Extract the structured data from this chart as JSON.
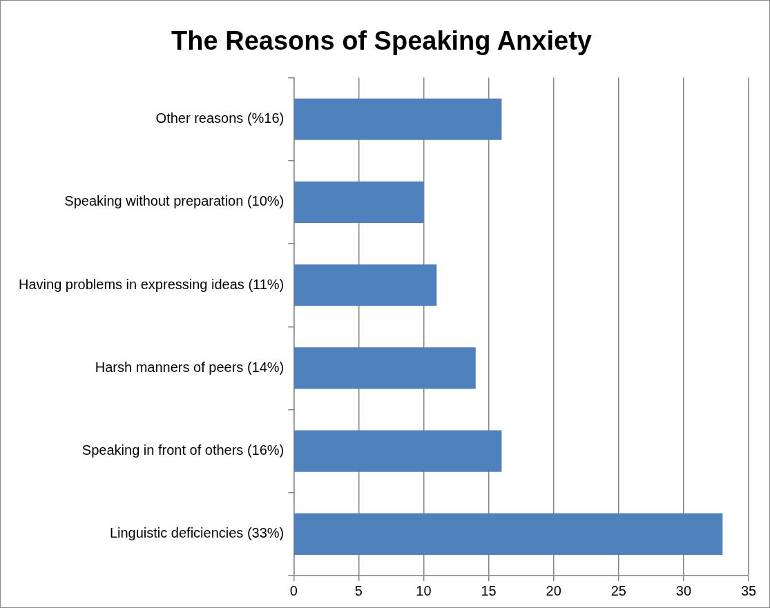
{
  "chart_data": {
    "type": "bar",
    "orientation": "horizontal",
    "title": "The Reasons of Speaking Anxiety",
    "categories": [
      "Other reasons (%16)",
      "Speaking without preparation (10%)",
      "Having problems in expressing ideas (11%)",
      "Harsh manners of peers (14%)",
      "Speaking in front of others (16%)",
      "Linguistic deficiencies (33%)"
    ],
    "values": [
      16,
      10,
      11,
      14,
      16,
      33
    ],
    "color": "#4f81bd",
    "xlim": [
      0,
      35
    ],
    "xticks": [
      0,
      5,
      10,
      15,
      20,
      25,
      30,
      35
    ],
    "grid": "x"
  }
}
